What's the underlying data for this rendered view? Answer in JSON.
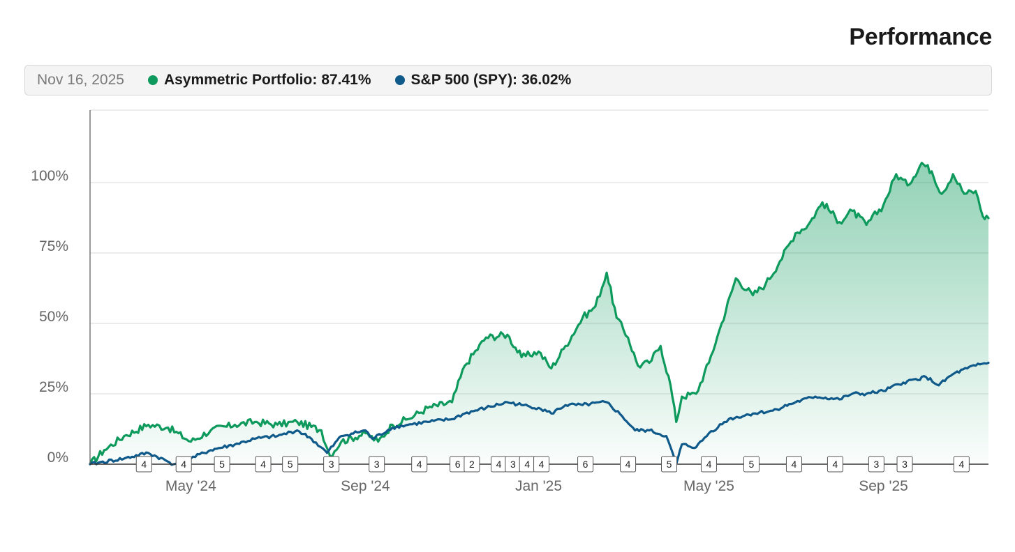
{
  "header": {
    "title": "Performance"
  },
  "legend": {
    "date": "Nov 16, 2025",
    "items": [
      {
        "label": "Asymmetric Portfolio:",
        "value": "87.41%",
        "color": "#0d9a5c"
      },
      {
        "label": "S&P 500 (SPY):",
        "value": "36.02%",
        "color": "#0f5a8a"
      }
    ]
  },
  "chart_data": {
    "type": "area",
    "x_range": [
      "2024-02-20",
      "2025-11-14"
    ],
    "ylim": [
      0,
      100
    ],
    "y_ticks": [
      {
        "value": 0,
        "label": "0%"
      },
      {
        "value": 25,
        "label": "25%"
      },
      {
        "value": 50,
        "label": "50%"
      },
      {
        "value": 75,
        "label": "75%"
      },
      {
        "value": 100,
        "label": "100%"
      }
    ],
    "x_ticks": [
      {
        "date": "2024-05-01",
        "label": "May '24"
      },
      {
        "date": "2024-09-01",
        "label": "Sep '24"
      },
      {
        "date": "2025-01-01",
        "label": "Jan '25"
      },
      {
        "date": "2025-05-01",
        "label": "May '25"
      },
      {
        "date": "2025-09-01",
        "label": "Sep '25"
      }
    ],
    "grid": true,
    "series": [
      {
        "name": "Asymmetric Portfolio",
        "color": "#0d9a5c",
        "area": true,
        "points": [
          [
            "2024-02-20",
            0
          ],
          [
            "2024-03-01",
            5
          ],
          [
            "2024-03-15",
            10
          ],
          [
            "2024-04-01",
            14
          ],
          [
            "2024-04-15",
            13
          ],
          [
            "2024-05-01",
            8
          ],
          [
            "2024-05-15",
            12
          ],
          [
            "2024-06-01",
            14
          ],
          [
            "2024-06-15",
            15
          ],
          [
            "2024-07-01",
            14
          ],
          [
            "2024-07-15",
            15
          ],
          [
            "2024-08-01",
            12
          ],
          [
            "2024-08-07",
            3
          ],
          [
            "2024-08-15",
            8
          ],
          [
            "2024-09-01",
            11
          ],
          [
            "2024-09-10",
            8
          ],
          [
            "2024-09-20",
            14
          ],
          [
            "2024-10-01",
            16
          ],
          [
            "2024-10-15",
            20
          ],
          [
            "2024-11-01",
            22
          ],
          [
            "2024-11-10",
            35
          ],
          [
            "2024-11-25",
            45
          ],
          [
            "2024-12-10",
            46
          ],
          [
            "2024-12-20",
            38
          ],
          [
            "2025-01-01",
            40
          ],
          [
            "2025-01-10",
            34
          ],
          [
            "2025-01-20",
            42
          ],
          [
            "2025-02-01",
            52
          ],
          [
            "2025-02-10",
            56
          ],
          [
            "2025-02-18",
            68
          ],
          [
            "2025-02-25",
            52
          ],
          [
            "2025-03-05",
            45
          ],
          [
            "2025-03-12",
            35
          ],
          [
            "2025-03-20",
            36
          ],
          [
            "2025-03-28",
            42
          ],
          [
            "2025-04-04",
            28
          ],
          [
            "2025-04-08",
            15
          ],
          [
            "2025-04-12",
            24
          ],
          [
            "2025-04-22",
            25
          ],
          [
            "2025-05-01",
            36
          ],
          [
            "2025-05-10",
            50
          ],
          [
            "2025-05-20",
            66
          ],
          [
            "2025-06-01",
            60
          ],
          [
            "2025-06-10",
            64
          ],
          [
            "2025-06-20",
            72
          ],
          [
            "2025-07-01",
            82
          ],
          [
            "2025-07-10",
            85
          ],
          [
            "2025-07-20",
            93
          ],
          [
            "2025-08-01",
            86
          ],
          [
            "2025-08-10",
            90
          ],
          [
            "2025-08-20",
            85
          ],
          [
            "2025-09-01",
            92
          ],
          [
            "2025-09-10",
            103
          ],
          [
            "2025-09-18",
            99
          ],
          [
            "2025-09-28",
            107
          ],
          [
            "2025-10-05",
            104
          ],
          [
            "2025-10-12",
            96
          ],
          [
            "2025-10-20",
            103
          ],
          [
            "2025-10-28",
            96
          ],
          [
            "2025-11-05",
            97
          ],
          [
            "2025-11-10",
            88
          ],
          [
            "2025-11-14",
            87.41
          ]
        ]
      },
      {
        "name": "S&P 500 (SPY)",
        "color": "#0f5a8a",
        "area": false,
        "points": [
          [
            "2024-02-20",
            0
          ],
          [
            "2024-03-15",
            2
          ],
          [
            "2024-04-01",
            4
          ],
          [
            "2024-04-19",
            0
          ],
          [
            "2024-05-01",
            2
          ],
          [
            "2024-05-15",
            5
          ],
          [
            "2024-06-01",
            7
          ],
          [
            "2024-06-15",
            9
          ],
          [
            "2024-07-01",
            10
          ],
          [
            "2024-07-15",
            12
          ],
          [
            "2024-07-25",
            9
          ],
          [
            "2024-08-05",
            4
          ],
          [
            "2024-08-15",
            10
          ],
          [
            "2024-09-01",
            12
          ],
          [
            "2024-09-06",
            9
          ],
          [
            "2024-09-20",
            13
          ],
          [
            "2024-10-01",
            14
          ],
          [
            "2024-10-15",
            15
          ],
          [
            "2024-11-01",
            16
          ],
          [
            "2024-11-10",
            18
          ],
          [
            "2024-11-25",
            20
          ],
          [
            "2024-12-10",
            22
          ],
          [
            "2024-12-20",
            21
          ],
          [
            "2025-01-01",
            20
          ],
          [
            "2025-01-10",
            18
          ],
          [
            "2025-01-20",
            21
          ],
          [
            "2025-02-01",
            21
          ],
          [
            "2025-02-18",
            22
          ],
          [
            "2025-03-01",
            17
          ],
          [
            "2025-03-10",
            12
          ],
          [
            "2025-03-20",
            12
          ],
          [
            "2025-04-01",
            10
          ],
          [
            "2025-04-08",
            0
          ],
          [
            "2025-04-12",
            7
          ],
          [
            "2025-04-22",
            6
          ],
          [
            "2025-05-01",
            11
          ],
          [
            "2025-05-15",
            16
          ],
          [
            "2025-06-01",
            18
          ],
          [
            "2025-06-15",
            19
          ],
          [
            "2025-07-01",
            22
          ],
          [
            "2025-07-15",
            24
          ],
          [
            "2025-08-01",
            23
          ],
          [
            "2025-08-10",
            25
          ],
          [
            "2025-08-20",
            25
          ],
          [
            "2025-09-01",
            26
          ],
          [
            "2025-09-15",
            29
          ],
          [
            "2025-10-01",
            31
          ],
          [
            "2025-10-10",
            28
          ],
          [
            "2025-10-20",
            32
          ],
          [
            "2025-10-30",
            34
          ],
          [
            "2025-11-05",
            35
          ],
          [
            "2025-11-14",
            36.02
          ]
        ]
      }
    ],
    "event_markers": [
      {
        "date": "2024-03-29",
        "label": "4"
      },
      {
        "date": "2024-04-26",
        "label": "4"
      },
      {
        "date": "2024-05-23",
        "label": "5"
      },
      {
        "date": "2024-06-21",
        "label": "4"
      },
      {
        "date": "2024-07-10",
        "label": "5"
      },
      {
        "date": "2024-08-08",
        "label": "3"
      },
      {
        "date": "2024-09-09",
        "label": "3"
      },
      {
        "date": "2024-10-09",
        "label": "4"
      },
      {
        "date": "2024-11-05",
        "label": "6"
      },
      {
        "date": "2024-11-15",
        "label": "2"
      },
      {
        "date": "2024-12-04",
        "label": "4"
      },
      {
        "date": "2024-12-14",
        "label": "3"
      },
      {
        "date": "2024-12-24",
        "label": "4"
      },
      {
        "date": "2025-01-03",
        "label": "4"
      },
      {
        "date": "2025-02-03",
        "label": "6"
      },
      {
        "date": "2025-03-05",
        "label": "4"
      },
      {
        "date": "2025-04-03",
        "label": "5"
      },
      {
        "date": "2025-05-01",
        "label": "4"
      },
      {
        "date": "2025-05-31",
        "label": "5"
      },
      {
        "date": "2025-06-30",
        "label": "4"
      },
      {
        "date": "2025-07-29",
        "label": "4"
      },
      {
        "date": "2025-08-27",
        "label": "3"
      },
      {
        "date": "2025-09-16",
        "label": "3"
      },
      {
        "date": "2025-10-26",
        "label": "4"
      }
    ]
  }
}
